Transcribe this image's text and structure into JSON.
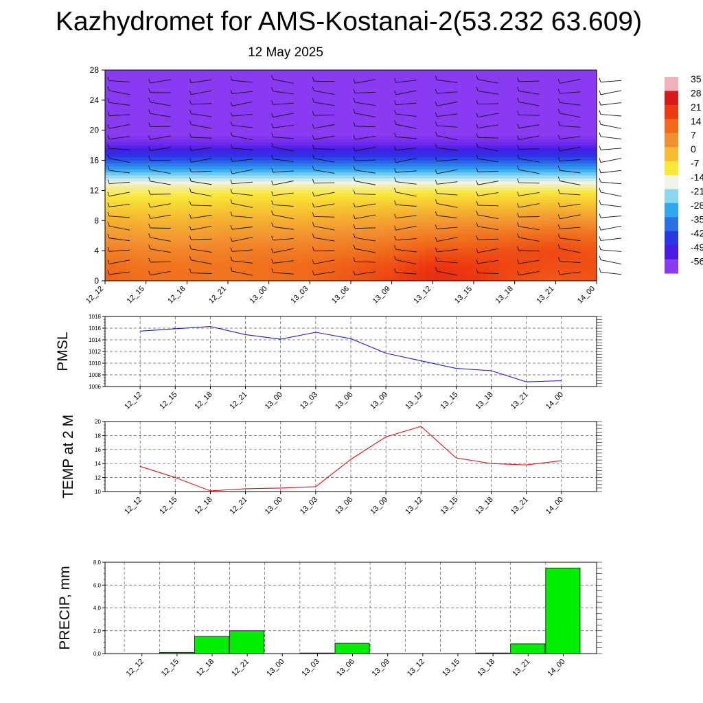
{
  "page": {
    "title": "Kazhydromet for AMS-Kostanai-2(53.232 63.609)",
    "subtitle": "12 May 2025"
  },
  "colors": {
    "pmsl_line": "#1a1acc",
    "temp_line": "#e01010",
    "precip_bar": "#00ee00",
    "grid": "#555555"
  },
  "chart_data": [
    {
      "type": "heatmap",
      "title": "",
      "x": [
        "12_12",
        "12_15",
        "12_18",
        "12_21",
        "13_00",
        "13_03",
        "13_06",
        "13_09",
        "13_12",
        "13_15",
        "13_18",
        "13_21",
        "14_00"
      ],
      "ylim": [
        0,
        28
      ],
      "yticks": [
        0,
        4,
        8,
        12,
        16,
        20,
        24,
        28
      ],
      "colorbar": {
        "labels": [
          "35",
          "28",
          "21",
          "14",
          "7",
          "0",
          "-7",
          "-14",
          "-21",
          "-28",
          "-35",
          "-42",
          "-49",
          "-56"
        ],
        "stops": [
          "#f2b0b8",
          "#d81a1a",
          "#ee3a10",
          "#f06a1a",
          "#f29030",
          "#f6bb30",
          "#fae838",
          "#f2f2e6",
          "#8ad8f0",
          "#30a8f0",
          "#2a70e6",
          "#2a36e6",
          "#4a1ae6",
          "#8a3af0"
        ]
      },
      "temperature_profile": {
        "heights": [
          0,
          2,
          4,
          6,
          8,
          10,
          11.5,
          12.5,
          13.5,
          15,
          16.5,
          18,
          20,
          22,
          24,
          26,
          28
        ],
        "temps_by_time": [
          [
            15,
            14,
            10,
            6,
            2,
            -4,
            -8,
            -11,
            -17,
            -30,
            -42,
            -52,
            -59,
            -57,
            -60,
            -58,
            -56
          ],
          [
            13,
            12,
            9,
            5,
            1,
            -4,
            -8,
            -11,
            -17,
            -30,
            -42,
            -52,
            -58,
            -57,
            -60,
            -58,
            -56
          ],
          [
            13,
            12,
            9,
            5,
            1,
            -4,
            -8,
            -11,
            -17,
            -30,
            -42,
            -52,
            -58,
            -57,
            -60,
            -58,
            -56
          ],
          [
            12,
            12,
            10,
            6,
            2,
            -3,
            -7,
            -11,
            -17,
            -30,
            -42,
            -52,
            -58,
            -57,
            -60,
            -58,
            -56
          ],
          [
            13,
            13,
            11,
            6,
            2,
            -3,
            -7,
            -11,
            -17,
            -30,
            -42,
            -52,
            -58,
            -57,
            -60,
            -58,
            -56
          ],
          [
            14,
            14,
            11,
            7,
            2,
            -3,
            -7,
            -11,
            -17,
            -30,
            -42,
            -52,
            -58,
            -57,
            -60,
            -58,
            -56
          ],
          [
            17,
            16,
            12,
            8,
            3,
            -2,
            -7,
            -11,
            -17,
            -30,
            -42,
            -52,
            -58,
            -57,
            -60,
            -58,
            -56
          ],
          [
            20,
            18,
            14,
            9,
            4,
            -2,
            -7,
            -11,
            -17,
            -30,
            -42,
            -52,
            -58,
            -57,
            -60,
            -58,
            -56
          ],
          [
            24,
            22,
            17,
            11,
            5,
            -1,
            -6,
            -11,
            -17,
            -30,
            -42,
            -52,
            -58,
            -57,
            -60,
            -58,
            -56
          ],
          [
            22,
            21,
            17,
            12,
            6,
            -1,
            -6,
            -11,
            -17,
            -30,
            -42,
            -52,
            -58,
            -57,
            -60,
            -58,
            -56
          ],
          [
            18,
            19,
            18,
            13,
            6,
            -1,
            -6,
            -11,
            -17,
            -30,
            -42,
            -52,
            -58,
            -57,
            -60,
            -58,
            -56
          ],
          [
            16,
            18,
            19,
            14,
            7,
            0,
            -6,
            -11,
            -17,
            -30,
            -42,
            -52,
            -58,
            -57,
            -60,
            -58,
            -56
          ],
          [
            17,
            18,
            17,
            13,
            6,
            -1,
            -6,
            -11,
            -17,
            -30,
            -42,
            -52,
            -58,
            -57,
            -60,
            -58,
            -56
          ]
        ]
      }
    },
    {
      "type": "line",
      "ylabel": "PMSL",
      "x": [
        "12_12",
        "12_15",
        "12_18",
        "12_21",
        "13_00",
        "13_03",
        "13_06",
        "13_09",
        "13_12",
        "13_15",
        "13_18",
        "13_21",
        "14_00"
      ],
      "values": [
        1015.5,
        1015.9,
        1016.3,
        1014.9,
        1014.1,
        1015.3,
        1014.2,
        1011.7,
        1010.4,
        1009.1,
        1008.7,
        1006.8,
        1007.0
      ],
      "ylim": [
        1006,
        1018
      ],
      "yticks": [
        "1018",
        "1016",
        "1014",
        "1012",
        "1010",
        "1008",
        "1006"
      ]
    },
    {
      "type": "line",
      "ylabel": "TEMP at 2 M",
      "x": [
        "12_12",
        "12_15",
        "12_18",
        "12_21",
        "13_00",
        "13_03",
        "13_06",
        "13_09",
        "13_12",
        "13_15",
        "13_18",
        "13_21",
        "14_00"
      ],
      "values": [
        13.6,
        12.0,
        10.1,
        10.4,
        10.5,
        10.7,
        14.6,
        17.8,
        19.3,
        14.8,
        14.0,
        13.8,
        14.4
      ],
      "ylim": [
        10,
        20
      ],
      "yticks": [
        "20",
        "18",
        "16",
        "14",
        "12",
        "10"
      ]
    },
    {
      "type": "bar",
      "ylabel": "PRECIP, mm",
      "categories": [
        "12_12",
        "12_15",
        "12_18",
        "12_21",
        "13_00",
        "13_03",
        "13_06",
        "13_09",
        "13_12",
        "13_15",
        "13_18",
        "13_21",
        "14_00"
      ],
      "values": [
        0,
        0.1,
        1.5,
        2.0,
        0,
        0.05,
        0.9,
        0,
        0,
        0,
        0.05,
        0.85,
        7.5
      ],
      "ylim": [
        0,
        8
      ],
      "yticks": [
        "8.0",
        "6.0",
        "4.0",
        "2.0",
        "0.0"
      ]
    }
  ]
}
